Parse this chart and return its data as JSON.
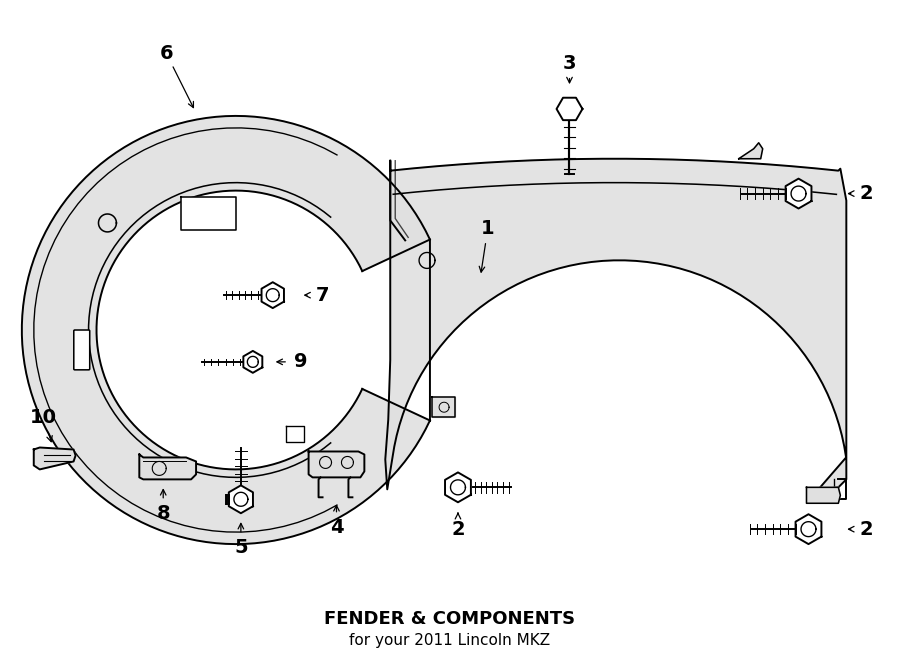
{
  "title": "FENDER & COMPONENTS",
  "subtitle": "for your 2011 Lincoln MKZ",
  "bg_color": "#ffffff",
  "line_color": "#000000",
  "fill_color": "#e0e0e0",
  "lw": 1.4
}
